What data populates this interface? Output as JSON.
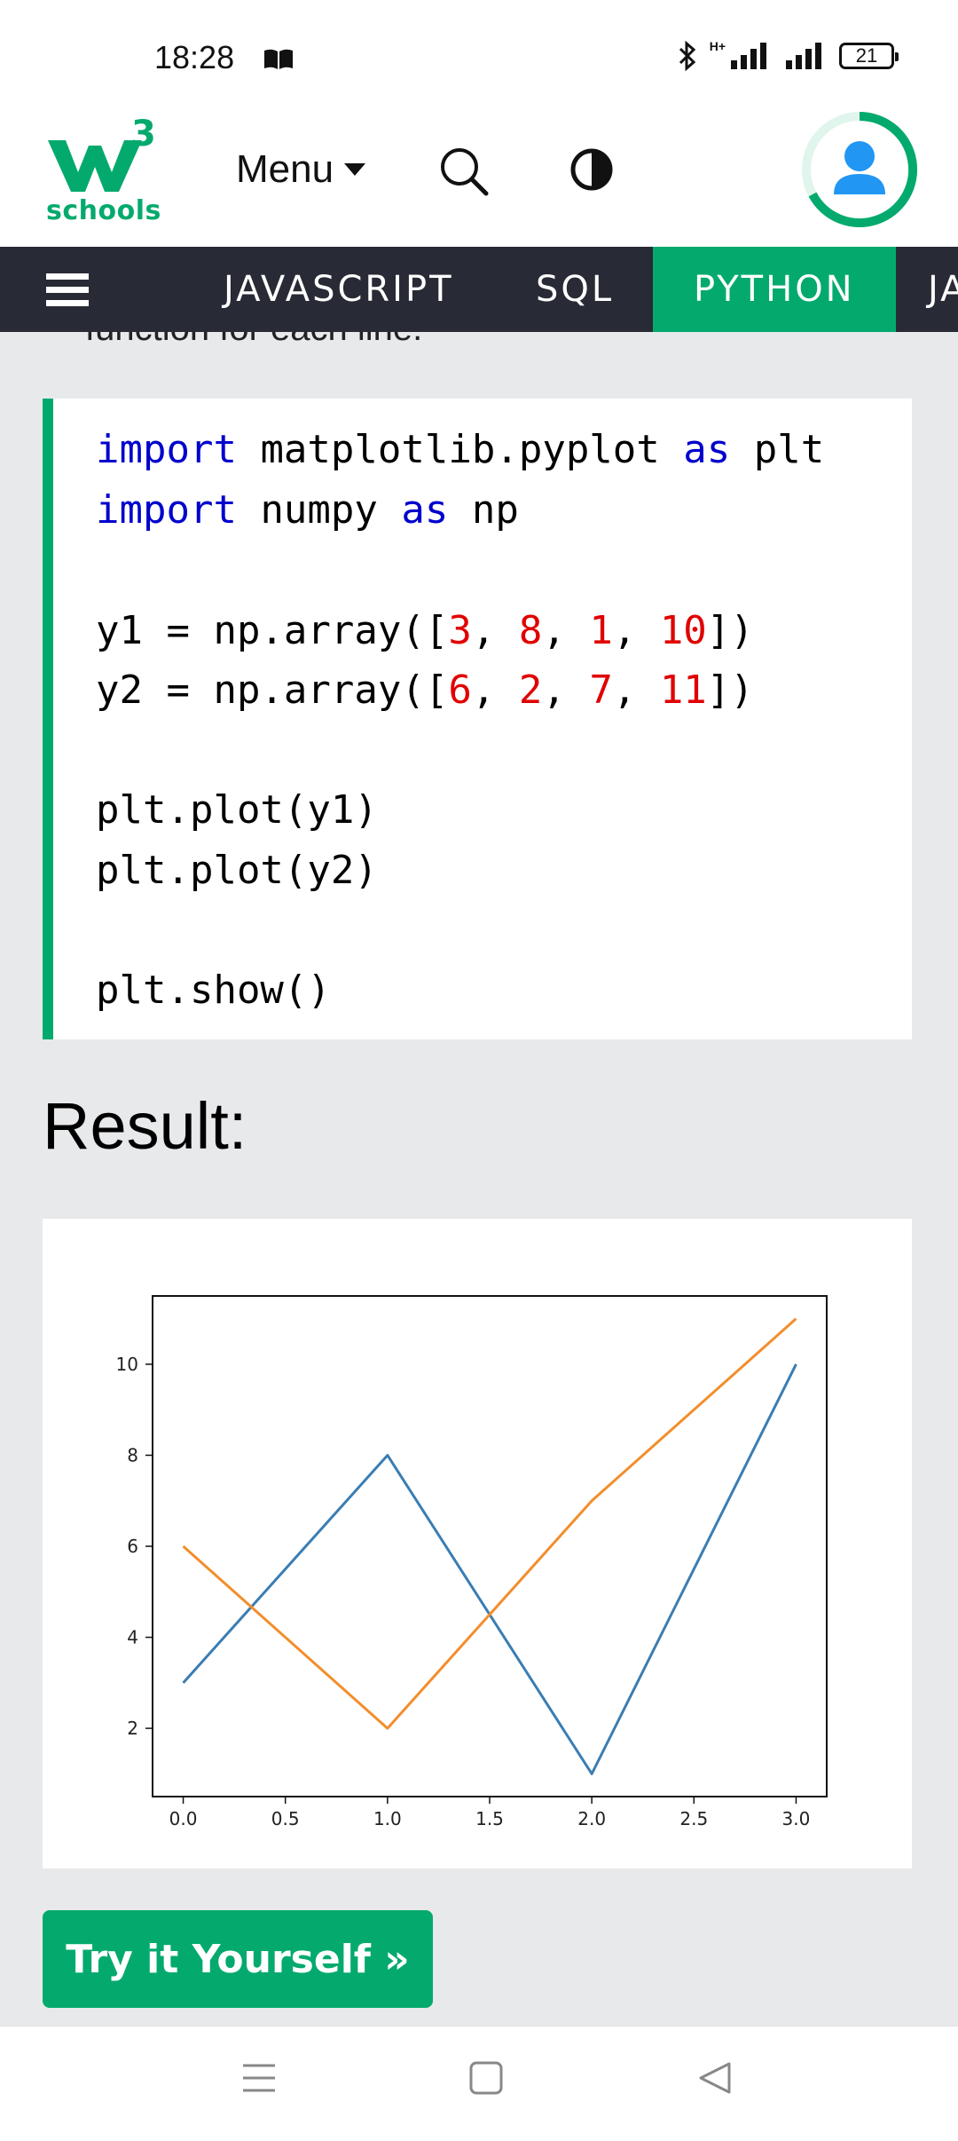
{
  "status_bar": {
    "time": "18:28",
    "battery": "21",
    "network_label": "H+"
  },
  "header": {
    "logo_sup": "3",
    "logo_text": "schools",
    "menu_label": "Menu",
    "brand_color": "#04aa6d"
  },
  "topnav": {
    "items": [
      {
        "label": "JAVASCRIPT",
        "active": false
      },
      {
        "label": "SQL",
        "active": false
      },
      {
        "label": "PYTHON",
        "active": true
      },
      {
        "label": "JA",
        "active": false
      }
    ]
  },
  "content": {
    "partial_text": "function for each line.",
    "code_lines": [
      "import matplotlib.pyplot as plt",
      "import numpy as np",
      "",
      "y1 = np.array([3, 8, 1, 10])",
      "y2 = np.array([6, 2, 7, 11])",
      "",
      "plt.plot(y1)",
      "plt.plot(y2)",
      "",
      "plt.show()"
    ],
    "result_label": "Result:",
    "try_button": "Try it Yourself »"
  },
  "chart_data": {
    "type": "line",
    "x": [
      0,
      1,
      2,
      3
    ],
    "series": [
      {
        "values": [
          3,
          8,
          1,
          10
        ],
        "color": "#3a7db3"
      },
      {
        "values": [
          6,
          2,
          7,
          11
        ],
        "color": "#f28e2b"
      }
    ],
    "xlim": [
      -0.15,
      3.15
    ],
    "ylim": [
      0.5,
      11.5
    ],
    "xticks": [
      "0.0",
      "0.5",
      "1.0",
      "1.5",
      "2.0",
      "2.5",
      "3.0"
    ],
    "yticks": [
      "2",
      "4",
      "6",
      "8",
      "10"
    ],
    "grid": false
  }
}
